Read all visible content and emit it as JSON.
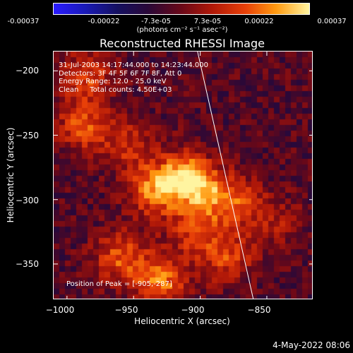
{
  "colorbar": {
    "ticks": [
      "-0.00037",
      "-0.00022",
      "-7.3e-05",
      "7.3e-05",
      "0.00022",
      "0.00037"
    ],
    "units": "(photons cm⁻² s⁻¹ asec⁻²)"
  },
  "chart_data": {
    "type": "heatmap",
    "title": "Reconstructed RHESSI Image",
    "xlabel": "Heliocentric X (arcsec)",
    "ylabel": "Heliocentric Y (arcsec)",
    "xlim": [
      -1010,
      -815
    ],
    "ylim": [
      -378,
      -185
    ],
    "xticks": [
      -1000,
      -950,
      -900,
      -850
    ],
    "yticks": [
      -200,
      -250,
      -300,
      -350
    ],
    "xtick_labels": [
      "−1000",
      "−950",
      "−900",
      "−850"
    ],
    "ytick_labels": [
      "−200",
      "−250",
      "−300",
      "−350"
    ],
    "color_range": [
      -0.00037,
      0.00037
    ],
    "colormap": [
      "#2a1bff",
      "#151060",
      "#2a0838",
      "#6a0818",
      "#b01808",
      "#e84008",
      "#ff9a10",
      "#fff4a0"
    ],
    "limb_line": {
      "x": [
        -902,
        -860
      ],
      "y": [
        -185,
        -378
      ]
    },
    "peak": {
      "x": -905,
      "y": -287
    },
    "sources": [
      {
        "x": -912,
        "y": -283,
        "amplitude": 0.00037
      },
      {
        "x": -935,
        "y": -293,
        "amplitude": 0.00029
      },
      {
        "x": -893,
        "y": -296,
        "amplitude": 0.00024
      },
      {
        "x": -870,
        "y": -303,
        "amplitude": 0.0002
      },
      {
        "x": -960,
        "y": -345,
        "amplitude": 0.00025
      },
      {
        "x": -930,
        "y": -363,
        "amplitude": 0.0003
      },
      {
        "x": -988,
        "y": -243,
        "amplitude": 0.00024
      },
      {
        "x": -985,
        "y": -205,
        "amplitude": 0.00022
      },
      {
        "x": -955,
        "y": -258,
        "amplitude": 0.00018
      },
      {
        "x": -880,
        "y": -345,
        "amplitude": 0.00022
      },
      {
        "x": -905,
        "y": -325,
        "amplitude": 0.00019
      },
      {
        "x": -842,
        "y": -318,
        "amplitude": 0.00012
      }
    ]
  },
  "annotation": {
    "time": "31-Jul-2003 14:17:44.000 to 14:23:44.000",
    "detectors": "Detectors: 3F 4F 5F 6F 7F 8F, Att 0",
    "energy": "Energy Range: 12.0 - 25.0 keV",
    "method": "Clean     Total counts: 4.50E+03",
    "peak": "Position of Peak = [-905,-287]"
  },
  "datestamp": "4-May-2022 08:06"
}
